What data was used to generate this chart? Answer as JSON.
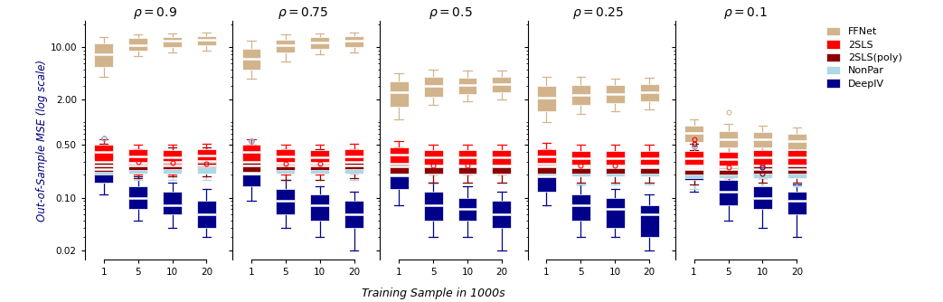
{
  "rho_values": [
    "0.9",
    "0.75",
    "0.5",
    "0.25",
    "0.1"
  ],
  "sample_sizes": [
    "1",
    "5",
    "10",
    "20"
  ],
  "colors": {
    "FFNet": "#D2B48C",
    "2SLS": "#FF0000",
    "2SLS(poly)": "#8B0000",
    "NonPar": "#ADD8E6",
    "DeepIV": "#00008B"
  },
  "methods_order": [
    "DeepIV",
    "NonPar",
    "2SLS(poly)",
    "2SLS",
    "FFNet"
  ],
  "legend_order": [
    "FFNet",
    "2SLS",
    "2SLS(poly)",
    "NonPar",
    "DeepIV"
  ],
  "xlabel": "Training Sample in 1000s",
  "ylabel": "Out-of-Sample MSE (log scale)",
  "boxplot_data": {
    "0.9": {
      "FFNet": {
        "1": {
          "q1": 5.5,
          "med": 8.0,
          "q3": 11.0,
          "whislo": 4.0,
          "whishi": 13.5,
          "fliers": []
        },
        "5": {
          "q1": 9.0,
          "med": 10.5,
          "q3": 13.0,
          "whislo": 7.5,
          "whishi": 14.5,
          "fliers": []
        },
        "10": {
          "q1": 10.0,
          "med": 12.0,
          "q3": 13.5,
          "whislo": 8.5,
          "whishi": 15.0,
          "fliers": []
        },
        "20": {
          "q1": 10.5,
          "med": 12.5,
          "q3": 14.0,
          "whislo": 9.0,
          "whishi": 15.5,
          "fliers": []
        }
      },
      "2SLS": {
        "1": {
          "q1": 0.3,
          "med": 0.4,
          "q3": 0.5,
          "whislo": 0.22,
          "whishi": 0.6,
          "fliers": []
        },
        "5": {
          "q1": 0.28,
          "med": 0.35,
          "q3": 0.44,
          "whislo": 0.2,
          "whishi": 0.5,
          "fliers": [
            0.3
          ]
        },
        "10": {
          "q1": 0.28,
          "med": 0.34,
          "q3": 0.43,
          "whislo": 0.2,
          "whishi": 0.5,
          "fliers": [
            0.29
          ]
        },
        "20": {
          "q1": 0.29,
          "med": 0.36,
          "q3": 0.44,
          "whislo": 0.22,
          "whishi": 0.52,
          "fliers": [
            0.28
          ]
        }
      },
      "2SLS(poly)": {
        "1": {
          "q1": 0.22,
          "med": 0.3,
          "q3": 0.4,
          "whislo": 0.17,
          "whishi": 0.52,
          "fliers": []
        },
        "5": {
          "q1": 0.23,
          "med": 0.29,
          "q3": 0.37,
          "whislo": 0.18,
          "whishi": 0.44,
          "fliers": []
        },
        "10": {
          "q1": 0.24,
          "med": 0.3,
          "q3": 0.38,
          "whislo": 0.19,
          "whishi": 0.46,
          "fliers": []
        },
        "20": {
          "q1": 0.25,
          "med": 0.31,
          "q3": 0.39,
          "whislo": 0.19,
          "whishi": 0.46,
          "fliers": []
        }
      },
      "NonPar": {
        "1": {
          "q1": 0.2,
          "med": 0.27,
          "q3": 0.34,
          "whislo": 0.16,
          "whishi": 0.44,
          "fliers": [
            0.62
          ]
        },
        "5": {
          "q1": 0.21,
          "med": 0.27,
          "q3": 0.33,
          "whislo": 0.17,
          "whishi": 0.39,
          "fliers": []
        },
        "10": {
          "q1": 0.21,
          "med": 0.27,
          "q3": 0.33,
          "whislo": 0.17,
          "whishi": 0.38,
          "fliers": []
        },
        "20": {
          "q1": 0.21,
          "med": 0.27,
          "q3": 0.33,
          "whislo": 0.17,
          "whishi": 0.38,
          "fliers": []
        }
      },
      "DeepIV": {
        "1": {
          "q1": 0.16,
          "med": 0.24,
          "q3": 0.32,
          "whislo": 0.11,
          "whishi": 0.44,
          "fliers": [
            0.62
          ]
        },
        "5": {
          "q1": 0.07,
          "med": 0.1,
          "q3": 0.14,
          "whislo": 0.05,
          "whishi": 0.19,
          "fliers": []
        },
        "10": {
          "q1": 0.06,
          "med": 0.08,
          "q3": 0.12,
          "whislo": 0.04,
          "whishi": 0.16,
          "fliers": []
        },
        "20": {
          "q1": 0.04,
          "med": 0.06,
          "q3": 0.09,
          "whislo": 0.03,
          "whishi": 0.13,
          "fliers": []
        }
      }
    },
    "0.75": {
      "FFNet": {
        "1": {
          "q1": 5.0,
          "med": 7.0,
          "q3": 9.5,
          "whislo": 3.8,
          "whishi": 12.0,
          "fliers": []
        },
        "5": {
          "q1": 8.5,
          "med": 10.5,
          "q3": 12.5,
          "whislo": 6.5,
          "whishi": 14.5,
          "fliers": []
        },
        "10": {
          "q1": 9.5,
          "med": 11.5,
          "q3": 13.5,
          "whislo": 8.0,
          "whishi": 15.0,
          "fliers": []
        },
        "20": {
          "q1": 10.0,
          "med": 12.0,
          "q3": 14.0,
          "whislo": 8.5,
          "whishi": 15.5,
          "fliers": []
        }
      },
      "2SLS": {
        "1": {
          "q1": 0.3,
          "med": 0.4,
          "q3": 0.5,
          "whislo": 0.2,
          "whishi": 0.6,
          "fliers": []
        },
        "5": {
          "q1": 0.28,
          "med": 0.35,
          "q3": 0.44,
          "whislo": 0.2,
          "whishi": 0.5,
          "fliers": [
            0.28
          ]
        },
        "10": {
          "q1": 0.28,
          "med": 0.34,
          "q3": 0.43,
          "whislo": 0.2,
          "whishi": 0.5,
          "fliers": [
            0.28
          ]
        },
        "20": {
          "q1": 0.29,
          "med": 0.35,
          "q3": 0.44,
          "whislo": 0.21,
          "whishi": 0.52,
          "fliers": []
        }
      },
      "2SLS(poly)": {
        "1": {
          "q1": 0.22,
          "med": 0.3,
          "q3": 0.4,
          "whislo": 0.16,
          "whishi": 0.5,
          "fliers": []
        },
        "5": {
          "q1": 0.23,
          "med": 0.29,
          "q3": 0.37,
          "whislo": 0.17,
          "whishi": 0.44,
          "fliers": []
        },
        "10": {
          "q1": 0.23,
          "med": 0.29,
          "q3": 0.37,
          "whislo": 0.17,
          "whishi": 0.44,
          "fliers": []
        },
        "20": {
          "q1": 0.24,
          "med": 0.3,
          "q3": 0.38,
          "whislo": 0.18,
          "whishi": 0.44,
          "fliers": []
        }
      },
      "NonPar": {
        "1": {
          "q1": 0.2,
          "med": 0.27,
          "q3": 0.34,
          "whislo": 0.15,
          "whishi": 0.43,
          "fliers": [
            0.56
          ]
        },
        "5": {
          "q1": 0.21,
          "med": 0.27,
          "q3": 0.33,
          "whislo": 0.17,
          "whishi": 0.38,
          "fliers": []
        },
        "10": {
          "q1": 0.21,
          "med": 0.27,
          "q3": 0.33,
          "whislo": 0.17,
          "whishi": 0.38,
          "fliers": []
        },
        "20": {
          "q1": 0.21,
          "med": 0.27,
          "q3": 0.33,
          "whislo": 0.17,
          "whishi": 0.38,
          "fliers": []
        }
      },
      "DeepIV": {
        "1": {
          "q1": 0.14,
          "med": 0.21,
          "q3": 0.29,
          "whislo": 0.09,
          "whishi": 0.38,
          "fliers": [
            0.56
          ]
        },
        "5": {
          "q1": 0.06,
          "med": 0.09,
          "q3": 0.13,
          "whislo": 0.04,
          "whishi": 0.17,
          "fliers": []
        },
        "10": {
          "q1": 0.05,
          "med": 0.08,
          "q3": 0.11,
          "whislo": 0.03,
          "whishi": 0.14,
          "fliers": []
        },
        "20": {
          "q1": 0.04,
          "med": 0.06,
          "q3": 0.09,
          "whislo": 0.02,
          "whishi": 0.12,
          "fliers": []
        }
      }
    },
    "0.5": {
      "FFNet": {
        "1": {
          "q1": 1.6,
          "med": 2.5,
          "q3": 3.5,
          "whislo": 1.1,
          "whishi": 4.5,
          "fliers": []
        },
        "5": {
          "q1": 2.2,
          "med": 3.0,
          "q3": 4.0,
          "whislo": 1.7,
          "whishi": 5.0,
          "fliers": []
        },
        "10": {
          "q1": 2.4,
          "med": 3.1,
          "q3": 3.9,
          "whislo": 1.9,
          "whishi": 4.8,
          "fliers": []
        },
        "20": {
          "q1": 2.5,
          "med": 3.2,
          "q3": 4.0,
          "whislo": 2.0,
          "whishi": 4.8,
          "fliers": []
        }
      },
      "2SLS": {
        "1": {
          "q1": 0.28,
          "med": 0.37,
          "q3": 0.46,
          "whislo": 0.2,
          "whishi": 0.56,
          "fliers": []
        },
        "5": {
          "q1": 0.27,
          "med": 0.34,
          "q3": 0.43,
          "whislo": 0.2,
          "whishi": 0.5,
          "fliers": [
            0.27
          ]
        },
        "10": {
          "q1": 0.27,
          "med": 0.34,
          "q3": 0.43,
          "whislo": 0.2,
          "whishi": 0.5,
          "fliers": [
            0.27
          ]
        },
        "20": {
          "q1": 0.27,
          "med": 0.34,
          "q3": 0.43,
          "whislo": 0.2,
          "whishi": 0.5,
          "fliers": []
        }
      },
      "2SLS(poly)": {
        "1": {
          "q1": 0.21,
          "med": 0.28,
          "q3": 0.37,
          "whislo": 0.16,
          "whishi": 0.46,
          "fliers": []
        },
        "5": {
          "q1": 0.21,
          "med": 0.27,
          "q3": 0.35,
          "whislo": 0.16,
          "whishi": 0.42,
          "fliers": []
        },
        "10": {
          "q1": 0.21,
          "med": 0.27,
          "q3": 0.35,
          "whislo": 0.16,
          "whishi": 0.42,
          "fliers": []
        },
        "20": {
          "q1": 0.21,
          "med": 0.27,
          "q3": 0.35,
          "whislo": 0.16,
          "whishi": 0.42,
          "fliers": []
        }
      },
      "NonPar": {
        "1": {
          "q1": 0.19,
          "med": 0.26,
          "q3": 0.33,
          "whislo": 0.14,
          "whishi": 0.41,
          "fliers": []
        },
        "5": {
          "q1": 0.2,
          "med": 0.26,
          "q3": 0.32,
          "whislo": 0.16,
          "whishi": 0.36,
          "fliers": []
        },
        "10": {
          "q1": 0.2,
          "med": 0.26,
          "q3": 0.32,
          "whislo": 0.16,
          "whishi": 0.36,
          "fliers": []
        },
        "20": {
          "q1": 0.2,
          "med": 0.26,
          "q3": 0.32,
          "whislo": 0.16,
          "whishi": 0.36,
          "fliers": []
        }
      },
      "DeepIV": {
        "1": {
          "q1": 0.13,
          "med": 0.2,
          "q3": 0.28,
          "whislo": 0.08,
          "whishi": 0.36,
          "fliers": []
        },
        "5": {
          "q1": 0.05,
          "med": 0.08,
          "q3": 0.12,
          "whislo": 0.03,
          "whishi": 0.16,
          "fliers": []
        },
        "10": {
          "q1": 0.05,
          "med": 0.07,
          "q3": 0.1,
          "whislo": 0.03,
          "whishi": 0.14,
          "fliers": []
        },
        "20": {
          "q1": 0.04,
          "med": 0.06,
          "q3": 0.09,
          "whislo": 0.02,
          "whishi": 0.12,
          "fliers": []
        }
      }
    },
    "0.25": {
      "FFNet": {
        "1": {
          "q1": 1.4,
          "med": 2.1,
          "q3": 3.0,
          "whislo": 1.0,
          "whishi": 4.0,
          "fliers": []
        },
        "5": {
          "q1": 1.7,
          "med": 2.3,
          "q3": 3.1,
          "whislo": 1.3,
          "whishi": 4.0,
          "fliers": []
        },
        "10": {
          "q1": 1.8,
          "med": 2.4,
          "q3": 3.1,
          "whislo": 1.4,
          "whishi": 3.8,
          "fliers": []
        },
        "20": {
          "q1": 1.9,
          "med": 2.5,
          "q3": 3.2,
          "whislo": 1.5,
          "whishi": 3.9,
          "fliers": []
        }
      },
      "2SLS": {
        "1": {
          "q1": 0.27,
          "med": 0.35,
          "q3": 0.44,
          "whislo": 0.2,
          "whishi": 0.54,
          "fliers": []
        },
        "5": {
          "q1": 0.27,
          "med": 0.33,
          "q3": 0.42,
          "whislo": 0.2,
          "whishi": 0.5,
          "fliers": [
            0.27
          ]
        },
        "10": {
          "q1": 0.27,
          "med": 0.33,
          "q3": 0.42,
          "whislo": 0.2,
          "whishi": 0.5,
          "fliers": [
            0.27
          ]
        },
        "20": {
          "q1": 0.27,
          "med": 0.33,
          "q3": 0.42,
          "whislo": 0.2,
          "whishi": 0.5,
          "fliers": []
        }
      },
      "2SLS(poly)": {
        "1": {
          "q1": 0.21,
          "med": 0.28,
          "q3": 0.36,
          "whislo": 0.16,
          "whishi": 0.44,
          "fliers": []
        },
        "5": {
          "q1": 0.21,
          "med": 0.27,
          "q3": 0.34,
          "whislo": 0.16,
          "whishi": 0.4,
          "fliers": []
        },
        "10": {
          "q1": 0.21,
          "med": 0.27,
          "q3": 0.34,
          "whislo": 0.16,
          "whishi": 0.4,
          "fliers": []
        },
        "20": {
          "q1": 0.21,
          "med": 0.27,
          "q3": 0.34,
          "whislo": 0.16,
          "whishi": 0.4,
          "fliers": []
        }
      },
      "NonPar": {
        "1": {
          "q1": 0.19,
          "med": 0.26,
          "q3": 0.33,
          "whislo": 0.14,
          "whishi": 0.4,
          "fliers": []
        },
        "5": {
          "q1": 0.19,
          "med": 0.25,
          "q3": 0.31,
          "whislo": 0.15,
          "whishi": 0.35,
          "fliers": []
        },
        "10": {
          "q1": 0.19,
          "med": 0.25,
          "q3": 0.31,
          "whislo": 0.15,
          "whishi": 0.35,
          "fliers": []
        },
        "20": {
          "q1": 0.19,
          "med": 0.25,
          "q3": 0.31,
          "whislo": 0.15,
          "whishi": 0.35,
          "fliers": []
        }
      },
      "DeepIV": {
        "1": {
          "q1": 0.12,
          "med": 0.19,
          "q3": 0.27,
          "whislo": 0.08,
          "whishi": 0.34,
          "fliers": []
        },
        "5": {
          "q1": 0.05,
          "med": 0.08,
          "q3": 0.11,
          "whislo": 0.03,
          "whishi": 0.15,
          "fliers": []
        },
        "10": {
          "q1": 0.04,
          "med": 0.07,
          "q3": 0.1,
          "whislo": 0.03,
          "whishi": 0.13,
          "fliers": []
        },
        "20": {
          "q1": 0.03,
          "med": 0.06,
          "q3": 0.08,
          "whislo": 0.02,
          "whishi": 0.11,
          "fliers": []
        }
      }
    },
    "0.1": {
      "FFNet": {
        "1": {
          "q1": 0.55,
          "med": 0.72,
          "q3": 0.9,
          "whislo": 0.41,
          "whishi": 1.1,
          "fliers": []
        },
        "5": {
          "q1": 0.46,
          "med": 0.6,
          "q3": 0.76,
          "whislo": 0.36,
          "whishi": 0.95,
          "fliers": [
            1.35
          ]
        },
        "10": {
          "q1": 0.46,
          "med": 0.59,
          "q3": 0.75,
          "whislo": 0.36,
          "whishi": 0.9,
          "fliers": []
        },
        "20": {
          "q1": 0.44,
          "med": 0.56,
          "q3": 0.7,
          "whislo": 0.34,
          "whishi": 0.86,
          "fliers": []
        }
      },
      "2SLS": {
        "1": {
          "q1": 0.25,
          "med": 0.33,
          "q3": 0.42,
          "whislo": 0.18,
          "whishi": 0.52,
          "fliers": [
            0.6
          ]
        },
        "5": {
          "q1": 0.25,
          "med": 0.32,
          "q3": 0.41,
          "whislo": 0.18,
          "whishi": 0.5,
          "fliers": [
            0.25
          ]
        },
        "10": {
          "q1": 0.27,
          "med": 0.34,
          "q3": 0.43,
          "whislo": 0.2,
          "whishi": 0.52,
          "fliers": [
            0.27
          ]
        },
        "20": {
          "q1": 0.27,
          "med": 0.34,
          "q3": 0.43,
          "whislo": 0.2,
          "whishi": 0.52,
          "fliers": []
        }
      },
      "2SLS(poly)": {
        "1": {
          "q1": 0.2,
          "med": 0.27,
          "q3": 0.35,
          "whislo": 0.15,
          "whishi": 0.43,
          "fliers": [
            0.52
          ]
        },
        "5": {
          "q1": 0.2,
          "med": 0.26,
          "q3": 0.33,
          "whislo": 0.15,
          "whishi": 0.39,
          "fliers": []
        },
        "10": {
          "q1": 0.21,
          "med": 0.27,
          "q3": 0.34,
          "whislo": 0.16,
          "whishi": 0.4,
          "fliers": [
            0.21
          ]
        },
        "20": {
          "q1": 0.21,
          "med": 0.27,
          "q3": 0.34,
          "whislo": 0.16,
          "whishi": 0.4,
          "fliers": []
        }
      },
      "NonPar": {
        "1": {
          "q1": 0.18,
          "med": 0.25,
          "q3": 0.32,
          "whislo": 0.13,
          "whishi": 0.38,
          "fliers": [
            0.48
          ]
        },
        "5": {
          "q1": 0.18,
          "med": 0.24,
          "q3": 0.3,
          "whislo": 0.14,
          "whishi": 0.34,
          "fliers": []
        },
        "10": {
          "q1": 0.18,
          "med": 0.24,
          "q3": 0.3,
          "whislo": 0.14,
          "whishi": 0.34,
          "fliers": []
        },
        "20": {
          "q1": 0.18,
          "med": 0.24,
          "q3": 0.3,
          "whislo": 0.14,
          "whishi": 0.34,
          "fliers": []
        }
      },
      "DeepIV": {
        "1": {
          "q1": 0.17,
          "med": 0.24,
          "q3": 0.32,
          "whislo": 0.12,
          "whishi": 0.4,
          "fliers": [
            0.48
          ]
        },
        "5": {
          "q1": 0.08,
          "med": 0.12,
          "q3": 0.17,
          "whislo": 0.05,
          "whishi": 0.22,
          "fliers": []
        },
        "10": {
          "q1": 0.07,
          "med": 0.1,
          "q3": 0.14,
          "whislo": 0.04,
          "whishi": 0.18,
          "fliers": [
            0.25
          ]
        },
        "20": {
          "q1": 0.06,
          "med": 0.09,
          "q3": 0.12,
          "whislo": 0.03,
          "whishi": 0.15,
          "fliers": []
        }
      }
    }
  }
}
